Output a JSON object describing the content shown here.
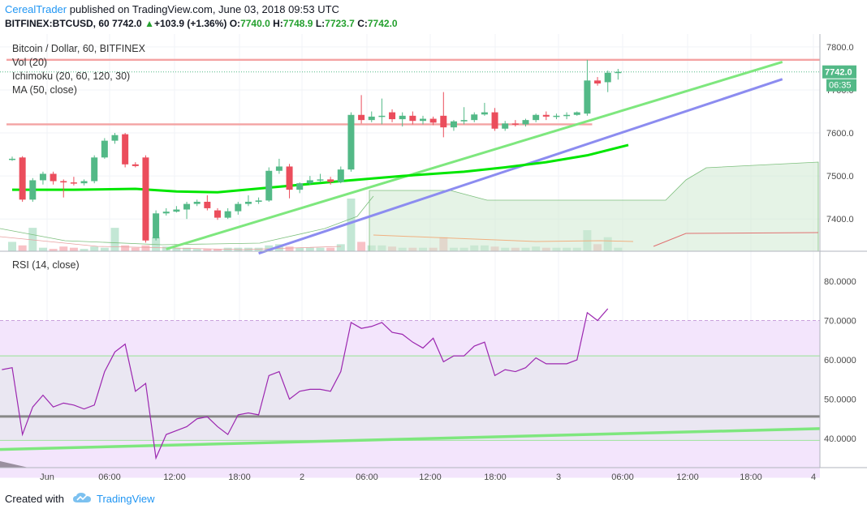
{
  "header": {
    "author": "CerealTrader",
    "published_text": "published on TradingView.com, June 03, 2018 09:53 UTC",
    "symbol": "BITFINEX:BTCUSD, 60",
    "last": "7742.0",
    "change_arrow": "▲",
    "change": "+103.9 (+1.36%)",
    "open_label": "O:",
    "open": "7740.0",
    "high_label": "H:",
    "high": "7748.9",
    "low_label": "L:",
    "low": "7723.7",
    "close_label": "C:",
    "close": "7742.0"
  },
  "legend": {
    "title": "Bitcoin / Dollar, 60, BITFINEX",
    "vol": "Vol (20)",
    "ichimoku": "Ichimoku (20, 60, 120, 30)",
    "ma": "MA (50, close)",
    "rsi": "RSI (14, close)"
  },
  "badges": {
    "price": "7742.0",
    "countdown": "06:35"
  },
  "footer": {
    "created_with": "Created with",
    "brand": "TradingView"
  },
  "colors": {
    "up": "#53b987",
    "down": "#eb4d5c",
    "ma": "#00e600",
    "green_trend": "#7ee77e",
    "blue_trend": "#8c8cf0",
    "resistance": "#f4a3a3",
    "rsi_line": "#9c27b0",
    "rsi_band": "#f3e5fc",
    "cloud": "#cfead2"
  },
  "chart_data": {
    "type": "candlestick",
    "symbol": "BTCUSD",
    "interval": "60",
    "price_axis": {
      "ticks": [
        "7800.0",
        "7700.0",
        "7600.0",
        "7500.0",
        "7400.0"
      ],
      "ylim": [
        7325,
        7830
      ]
    },
    "time_axis": {
      "ticks": [
        "Jun",
        "06:00",
        "12:00",
        "18:00",
        "2",
        "06:00",
        "12:00",
        "18:00",
        "3",
        "06:00",
        "12:00",
        "18:00",
        "4"
      ]
    },
    "candles": [
      {
        "o": 7538,
        "h": 7545,
        "c": 7540,
        "l": 7535
      },
      {
        "o": 7543,
        "h": 7546,
        "c": 7445,
        "l": 7440
      },
      {
        "o": 7445,
        "h": 7495,
        "c": 7490,
        "l": 7440
      },
      {
        "o": 7490,
        "h": 7510,
        "c": 7505,
        "l": 7480
      },
      {
        "o": 7505,
        "h": 7510,
        "c": 7488,
        "l": 7480
      },
      {
        "o": 7488,
        "h": 7492,
        "c": 7485,
        "l": 7450
      },
      {
        "o": 7485,
        "h": 7498,
        "c": 7483,
        "l": 7478
      },
      {
        "o": 7483,
        "h": 7492,
        "c": 7488,
        "l": 7478
      },
      {
        "o": 7488,
        "h": 7548,
        "c": 7543,
        "l": 7483
      },
      {
        "o": 7543,
        "h": 7588,
        "c": 7582,
        "l": 7540
      },
      {
        "o": 7582,
        "h": 7600,
        "c": 7595,
        "l": 7575
      },
      {
        "o": 7597,
        "h": 7600,
        "c": 7527,
        "l": 7520
      },
      {
        "o": 7527,
        "h": 7532,
        "c": 7523,
        "l": 7520
      },
      {
        "o": 7543,
        "h": 7548,
        "c": 7350,
        "l": 7345
      },
      {
        "o": 7355,
        "h": 7420,
        "c": 7413,
        "l": 7350
      },
      {
        "o": 7413,
        "h": 7425,
        "c": 7417,
        "l": 7408
      },
      {
        "o": 7417,
        "h": 7430,
        "c": 7422,
        "l": 7415
      },
      {
        "o": 7422,
        "h": 7440,
        "c": 7435,
        "l": 7400
      },
      {
        "o": 7435,
        "h": 7445,
        "c": 7440,
        "l": 7430
      },
      {
        "o": 7440,
        "h": 7455,
        "c": 7425,
        "l": 7420
      },
      {
        "o": 7420,
        "h": 7425,
        "c": 7403,
        "l": 7398
      },
      {
        "o": 7403,
        "h": 7425,
        "c": 7418,
        "l": 7400
      },
      {
        "o": 7418,
        "h": 7440,
        "c": 7435,
        "l": 7410
      },
      {
        "o": 7435,
        "h": 7455,
        "c": 7440,
        "l": 7430
      },
      {
        "o": 7440,
        "h": 7450,
        "c": 7443,
        "l": 7435
      },
      {
        "o": 7443,
        "h": 7520,
        "c": 7512,
        "l": 7440
      },
      {
        "o": 7512,
        "h": 7540,
        "c": 7522,
        "l": 7505
      },
      {
        "o": 7522,
        "h": 7528,
        "c": 7468,
        "l": 7448
      },
      {
        "o": 7468,
        "h": 7485,
        "c": 7483,
        "l": 7460
      },
      {
        "o": 7483,
        "h": 7500,
        "c": 7490,
        "l": 7480
      },
      {
        "o": 7490,
        "h": 7505,
        "c": 7492,
        "l": 7485
      },
      {
        "o": 7492,
        "h": 7498,
        "c": 7486,
        "l": 7480
      },
      {
        "o": 7486,
        "h": 7522,
        "c": 7515,
        "l": 7483
      },
      {
        "o": 7515,
        "h": 7648,
        "c": 7642,
        "l": 7510
      },
      {
        "o": 7642,
        "h": 7688,
        "c": 7630,
        "l": 7622
      },
      {
        "o": 7630,
        "h": 7650,
        "c": 7638,
        "l": 7625
      },
      {
        "o": 7638,
        "h": 7680,
        "c": 7640,
        "l": 7620
      },
      {
        "o": 7648,
        "h": 7655,
        "c": 7632,
        "l": 7625
      },
      {
        "o": 7632,
        "h": 7648,
        "c": 7640,
        "l": 7615
      },
      {
        "o": 7640,
        "h": 7650,
        "c": 7628,
        "l": 7620
      },
      {
        "o": 7628,
        "h": 7640,
        "c": 7633,
        "l": 7620
      },
      {
        "o": 7633,
        "h": 7638,
        "c": 7624,
        "l": 7618
      },
      {
        "o": 7640,
        "h": 7695,
        "c": 7613,
        "l": 7590
      },
      {
        "o": 7613,
        "h": 7630,
        "c": 7627,
        "l": 7605
      },
      {
        "o": 7627,
        "h": 7660,
        "c": 7630,
        "l": 7620
      },
      {
        "o": 7630,
        "h": 7648,
        "c": 7643,
        "l": 7625
      },
      {
        "o": 7643,
        "h": 7670,
        "c": 7648,
        "l": 7640
      },
      {
        "o": 7648,
        "h": 7658,
        "c": 7610,
        "l": 7605
      },
      {
        "o": 7610,
        "h": 7628,
        "c": 7622,
        "l": 7605
      },
      {
        "o": 7622,
        "h": 7630,
        "c": 7620,
        "l": 7615
      },
      {
        "o": 7620,
        "h": 7633,
        "c": 7630,
        "l": 7615
      },
      {
        "o": 7630,
        "h": 7645,
        "c": 7642,
        "l": 7625
      },
      {
        "o": 7642,
        "h": 7650,
        "c": 7638,
        "l": 7630
      },
      {
        "o": 7638,
        "h": 7645,
        "c": 7640,
        "l": 7632
      },
      {
        "o": 7640,
        "h": 7648,
        "c": 7642,
        "l": 7632
      },
      {
        "o": 7642,
        "h": 7650,
        "c": 7648,
        "l": 7640
      },
      {
        "o": 7645,
        "h": 7770,
        "c": 7722,
        "l": 7640
      },
      {
        "o": 7722,
        "h": 7730,
        "c": 7715,
        "l": 7710
      },
      {
        "o": 7718,
        "h": 7745,
        "c": 7740,
        "l": 7695
      },
      {
        "o": 7740,
        "h": 7749,
        "c": 7742,
        "l": 7724
      }
    ],
    "volume": [
      8,
      5,
      20,
      3,
      2,
      4,
      3,
      2,
      4,
      3,
      20,
      5,
      3,
      5,
      12,
      4,
      3,
      3,
      2,
      2,
      2,
      3,
      3,
      3,
      3,
      5,
      6,
      4,
      3,
      3,
      3,
      3,
      6,
      45,
      8,
      5,
      5,
      4,
      3,
      3,
      3,
      3,
      12,
      3,
      3,
      5,
      5,
      4,
      3,
      3,
      3,
      4,
      3,
      3,
      3,
      3,
      18,
      6,
      12,
      3
    ],
    "ma50": {
      "name": "MA (50, close)",
      "points": [
        [
          0,
          7468
        ],
        [
          6,
          7468
        ],
        [
          12,
          7470
        ],
        [
          16,
          7464
        ],
        [
          20,
          7462
        ],
        [
          26,
          7475
        ],
        [
          32,
          7488
        ],
        [
          38,
          7500
        ],
        [
          44,
          7510
        ],
        [
          48,
          7520
        ],
        [
          52,
          7532
        ],
        [
          56,
          7548
        ],
        [
          60,
          7572
        ]
      ]
    },
    "rsi": {
      "name": "RSI (14, close)",
      "ticks": [
        "80.0000",
        "70.0000",
        "60.0000",
        "50.0000",
        "40.0000"
      ],
      "overbought": 70,
      "oversold": 30,
      "values": [
        57.5,
        58,
        41,
        48,
        51,
        48,
        49,
        48.5,
        47.5,
        48.5,
        57,
        62,
        64,
        52,
        54,
        35,
        41,
        42,
        43,
        45,
        45.5,
        43,
        41,
        46,
        46.5,
        46,
        56,
        57,
        50,
        52,
        52.5,
        52.5,
        52,
        57,
        69.5,
        68,
        68.5,
        69.5,
        67,
        66.5,
        64.5,
        63,
        65.5,
        59.5,
        61,
        61,
        63.5,
        64.5,
        56,
        57.5,
        57,
        58,
        60.5,
        59,
        59,
        59,
        60,
        72,
        70,
        73
      ]
    },
    "resistance_lines": [
      {
        "price": 7770,
        "from": 0,
        "to": 1
      },
      {
        "price": 7620,
        "from": 0,
        "to": 0.72
      }
    ],
    "trend_lines": [
      {
        "color": "green",
        "from": [
          15,
          7330
        ],
        "to": [
          75,
          7765
        ]
      },
      {
        "color": "blue",
        "from": [
          24,
          7320
        ],
        "to": [
          75,
          7725
        ]
      }
    ]
  }
}
